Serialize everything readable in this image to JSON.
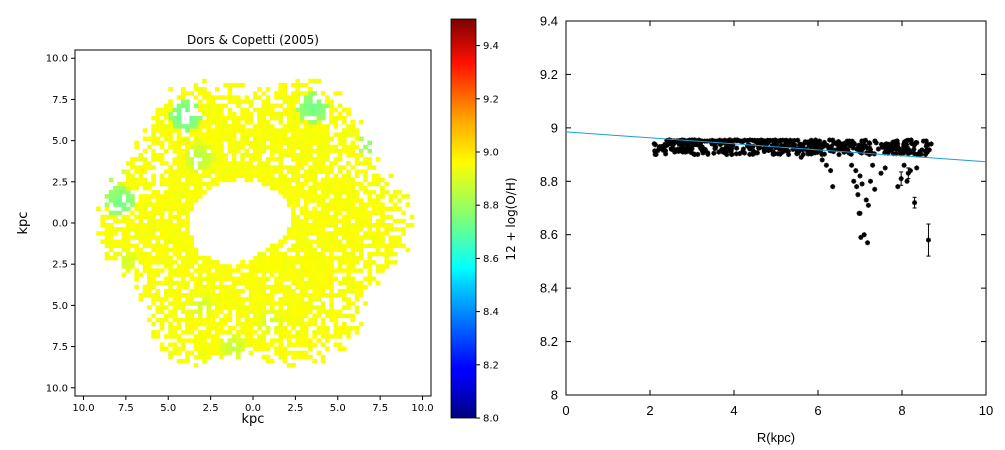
{
  "chart_data": [
    {
      "type": "heatmap",
      "title": "Dors & Copetti (2005)",
      "xlabel": "kpc",
      "ylabel": "kpc",
      "xlim": [
        10.5,
        -10.5
      ],
      "ylim": [
        10.5,
        -10.5
      ],
      "x_ticks": [
        "10.0",
        "7.5",
        "5.0",
        "2.5",
        "0.0",
        "2.5",
        "5.0",
        "7.5",
        "10.0"
      ],
      "y_ticks": [
        "10.0",
        "7.5",
        "5.0",
        "2.5",
        "0.0",
        "2.5",
        "5.0",
        "7.5",
        "10.0"
      ],
      "colorbar": {
        "label": "12 + log(O/H)",
        "range": [
          8.0,
          9.5
        ],
        "ticks": [
          "8.0",
          "8.2",
          "8.4",
          "8.6",
          "8.8",
          "9.0",
          "9.2",
          "9.4"
        ],
        "colormap": "jet"
      },
      "map": {
        "shape": "ring",
        "outer_radius_kpc": 9.0,
        "inner_radius_kpc": 2.7,
        "inner_center_kpc": [
          0.8,
          0.2
        ],
        "typical_value": 8.93,
        "low_value_patches": [
          {
            "x": 4.0,
            "y": 6.5,
            "value": 8.7
          },
          {
            "x": 7.8,
            "y": 1.3,
            "value": 8.72
          },
          {
            "x": 8.5,
            "y": 3.0,
            "value": 8.8
          },
          {
            "x": -3.5,
            "y": 7.0,
            "value": 8.72
          },
          {
            "x": -7.1,
            "y": 4.8,
            "value": 8.75
          },
          {
            "x": 3.2,
            "y": 4.0,
            "value": 8.82
          },
          {
            "x": 1.2,
            "y": -7.5,
            "value": 8.84
          },
          {
            "x": -1.0,
            "y": -6.0,
            "value": 8.86
          },
          {
            "x": 3.0,
            "y": -5.0,
            "value": 8.86
          },
          {
            "x": 7.5,
            "y": -2.3,
            "value": 8.86
          }
        ]
      }
    },
    {
      "type": "scatter",
      "title": "",
      "xlabel": "R(kpc)",
      "ylabel": "",
      "xlim": [
        0,
        10
      ],
      "ylim": [
        8,
        9.4
      ],
      "x_ticks": [
        0,
        2,
        4,
        6,
        8,
        10
      ],
      "y_ticks": [
        8,
        8.2,
        8.4,
        8.6,
        8.8,
        9,
        9.2,
        9.4
      ],
      "x_tick_labels": [
        "0",
        "2",
        "4",
        "6",
        "8",
        "10"
      ],
      "y_tick_labels": [
        "8",
        "8.2",
        "8.4",
        "8.6",
        "8.8",
        "9",
        "9.2",
        "9.4"
      ],
      "fit_line": {
        "color": "#1f9ad6",
        "points": [
          [
            0,
            8.985
          ],
          [
            10,
            8.873
          ]
        ]
      },
      "band": {
        "x_range": [
          2.1,
          8.7
        ],
        "y_range": [
          8.9,
          8.955
        ]
      },
      "outliers": [
        [
          5.3,
          8.9
        ],
        [
          5.6,
          8.89
        ],
        [
          6.1,
          8.88
        ],
        [
          6.2,
          8.86
        ],
        [
          6.3,
          8.84
        ],
        [
          6.5,
          8.9
        ],
        [
          6.8,
          8.86
        ],
        [
          6.9,
          8.84
        ],
        [
          7.0,
          8.82
        ],
        [
          7.3,
          8.86
        ],
        [
          7.6,
          8.85
        ],
        [
          8.05,
          8.86
        ],
        [
          8.2,
          8.84
        ],
        [
          6.35,
          8.78
        ],
        [
          6.85,
          8.8
        ],
        [
          6.92,
          8.78
        ],
        [
          7.05,
          8.79
        ],
        [
          7.25,
          8.8
        ],
        [
          7.35,
          8.77
        ],
        [
          6.95,
          8.75
        ],
        [
          7.15,
          8.73
        ],
        [
          7.2,
          8.71
        ],
        [
          7.0,
          8.68
        ],
        [
          6.98,
          8.68
        ],
        [
          7.1,
          8.6
        ],
        [
          7.02,
          8.59
        ],
        [
          7.18,
          8.57
        ],
        [
          7.9,
          8.78
        ],
        [
          8.12,
          8.8
        ],
        [
          7.5,
          8.83
        ],
        [
          8.35,
          8.85
        ]
      ],
      "error_points": [
        {
          "x": 8.3,
          "y": 8.72,
          "err": 0.02
        },
        {
          "x": 8.63,
          "y": 8.58,
          "err": 0.06
        },
        {
          "x": 7.98,
          "y": 8.81,
          "err": 0.025
        },
        {
          "x": 8.15,
          "y": 8.83,
          "err": 0.02
        }
      ]
    }
  ]
}
